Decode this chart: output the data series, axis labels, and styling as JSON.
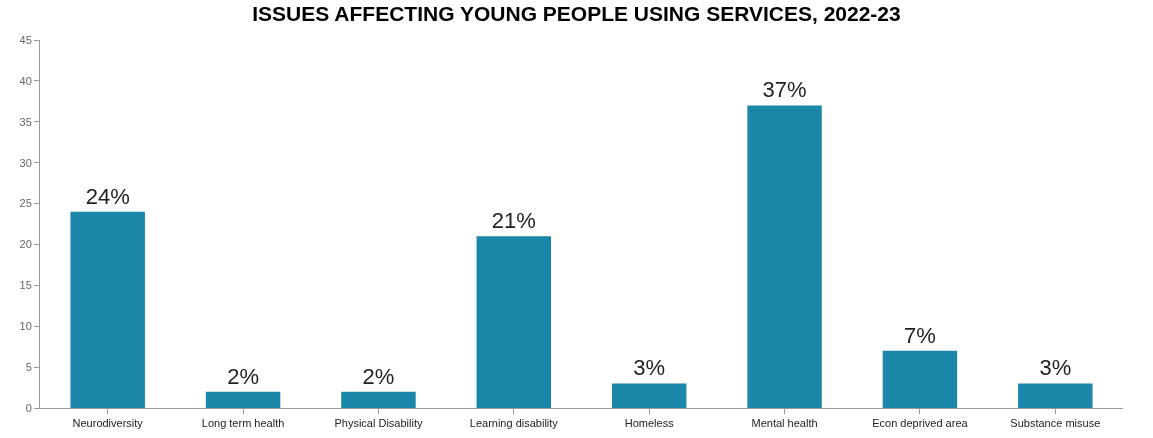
{
  "chart_data": {
    "type": "bar",
    "title": "ISSUES AFFECTING YOUNG PEOPLE USING SERVICES, 2022-23",
    "categories": [
      "Neurodiversity",
      "Long term health",
      "Physical Disability",
      "Learning disability",
      "Homeless",
      "Mental health",
      "Econ deprived area",
      "Substance misuse"
    ],
    "values": [
      24,
      2,
      2,
      21,
      3,
      37,
      7,
      3
    ],
    "value_labels": [
      "24%",
      "2%",
      "2%",
      "21%",
      "3%",
      "37%",
      "7%",
      "3%"
    ],
    "color": "#1a86a8",
    "ylim": [
      0,
      45
    ],
    "yticks": [
      0,
      5,
      10,
      15,
      20,
      25,
      30,
      35,
      40,
      45
    ],
    "grid": false
  }
}
